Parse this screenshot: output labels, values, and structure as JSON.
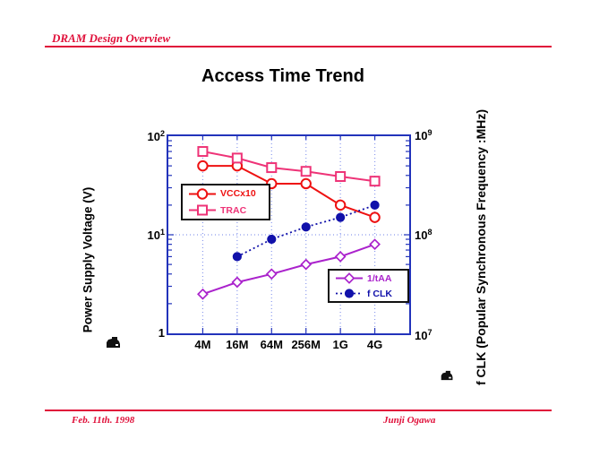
{
  "header": {
    "title": "DRAM Design Overview"
  },
  "footer": {
    "date": "Feb.  11th. 1998",
    "author": "Junji  Ogawa"
  },
  "chart": {
    "title": "Access Time Trend",
    "left_axis": {
      "title": "Power Supply Voltage (V)",
      "ticks": [
        {
          "base": "10",
          "exp": "2"
        },
        {
          "base": "10",
          "exp": "1"
        },
        {
          "base": "1",
          "exp": ""
        }
      ]
    },
    "right_axis": {
      "title": "f CLK (Popular Synchronous Frequency :MHz)",
      "ticks": [
        {
          "base": "10",
          "exp": "9"
        },
        {
          "base": "10",
          "exp": "8"
        },
        {
          "base": "10",
          "exp": "7"
        }
      ]
    }
  },
  "chart_data": {
    "type": "line",
    "title": "Access Time Trend",
    "x_scale": "category",
    "y_scale": "log",
    "categories": [
      "4M",
      "16M",
      "64M",
      "256M",
      "1G",
      "4G"
    ],
    "left_ylabel": "Power Supply Voltage (V)",
    "right_ylabel": "f CLK (Popular Synchronous Frequency :MHz)",
    "left_ylim": [
      1,
      100
    ],
    "right_ylim": [
      10000000,
      1000000000
    ],
    "grid": "dotted vertical gridlines at each category, dotted horizontal line at 10^1 / 10^8",
    "legend_position": "two inset boxes: upper-left (VCCx10, TRAC), lower-right (1/tAA, f CLK)",
    "series": [
      {
        "name": "VCCx10",
        "axis": "left",
        "marker": "circle-open",
        "line": "solid",
        "color": "#ee1111",
        "values": [
          50,
          50,
          33,
          33,
          20,
          15
        ]
      },
      {
        "name": "TRAC",
        "axis": "left",
        "marker": "square-open",
        "line": "solid",
        "color": "#ee3377",
        "values": [
          70,
          60,
          48,
          44,
          39,
          35
        ]
      },
      {
        "name": "1/tAA",
        "axis": "right",
        "marker": "diamond-open",
        "line": "solid",
        "color": "#aa22cc",
        "values": [
          2.5,
          3.3,
          4,
          5,
          6,
          8
        ],
        "values_mhz": [
          25,
          33,
          40,
          50,
          60,
          80
        ]
      },
      {
        "name": "f CLK",
        "axis": "right",
        "marker": "circle-filled",
        "line": "dotted",
        "color": "#1111aa",
        "values": [
          null,
          6,
          9,
          12,
          15,
          20
        ],
        "values_mhz": [
          null,
          60,
          90,
          120,
          150,
          200
        ]
      }
    ]
  },
  "colors": {
    "accent_red": "#e0103a",
    "frame_blue": "#2233bb",
    "grid_blue": "#8c9bee",
    "vcc_red": "#ee1111",
    "trac_pink": "#ee3377",
    "taa_purple": "#aa22cc",
    "fclk_navy": "#1111aa"
  },
  "icons": {
    "clipart_left": "small-black-clipart",
    "clipart_right": "small-black-clipart"
  }
}
